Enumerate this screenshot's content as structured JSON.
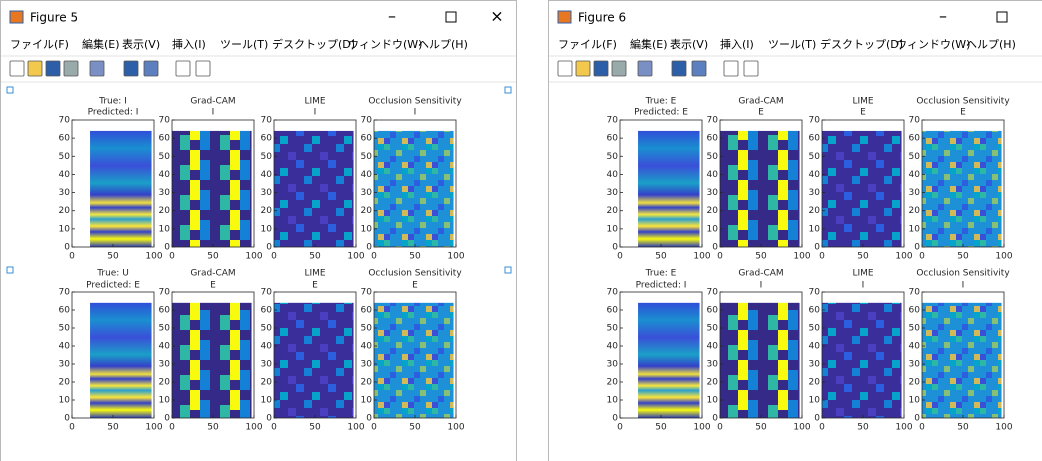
{
  "windows": [
    {
      "title": "Figure 5",
      "menu": [
        "ファイル(F)",
        "編集(E)",
        "表示(V)",
        "挿入(I)",
        "ツール(T)",
        "デスクトップ(D)",
        "ウィンドウ(W)",
        "ヘルプ(H)"
      ],
      "axes": {
        "xticks": [
          0,
          50,
          100
        ],
        "yticks": [
          0,
          10,
          20,
          30,
          40,
          50,
          60,
          70
        ]
      },
      "plots": [
        {
          "title": [
            "True: I",
            "Predicted: I"
          ]
        },
        {
          "title": [
            "Grad-CAM",
            "I"
          ]
        },
        {
          "title": [
            "LIME",
            "I"
          ]
        },
        {
          "title": [
            "Occlusion Sensitivity",
            "I"
          ]
        },
        {
          "title": [
            "True: U",
            "Predicted: E"
          ]
        },
        {
          "title": [
            "Grad-CAM",
            "E"
          ]
        },
        {
          "title": [
            "LIME",
            "E"
          ]
        },
        {
          "title": [
            "Occlusion Sensitivity",
            "E"
          ]
        }
      ]
    },
    {
      "title": "Figure 6",
      "menu": [
        "ファイル(F)",
        "編集(E)",
        "表示(V)",
        "挿入(I)",
        "ツール(T)",
        "デスクトップ(D)",
        "ウィンドウ(W)",
        "ヘルプ(H)"
      ],
      "axes": {
        "xticks": [
          0,
          50,
          100
        ],
        "yticks": [
          0,
          10,
          20,
          30,
          40,
          50,
          60,
          70
        ]
      },
      "plots": [
        {
          "title": [
            "True: E",
            "Predicted: E"
          ]
        },
        {
          "title": [
            "Grad-CAM",
            "E"
          ]
        },
        {
          "title": [
            "LIME",
            "E"
          ]
        },
        {
          "title": [
            "Occlusion Sensitivity",
            "E"
          ]
        },
        {
          "title": [
            "True: E",
            "Predicted: I"
          ]
        },
        {
          "title": [
            "Grad-CAM",
            "I"
          ]
        },
        {
          "title": [
            "LIME",
            "I"
          ]
        },
        {
          "title": [
            "Occlusion Sensitivity",
            "I"
          ]
        }
      ]
    }
  ]
}
